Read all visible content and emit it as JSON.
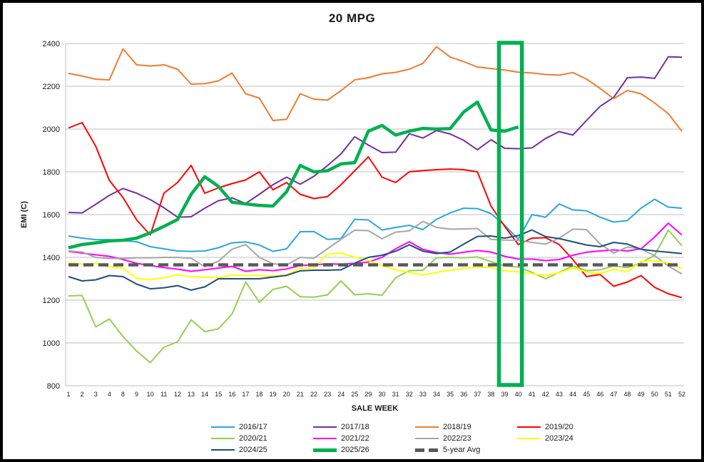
{
  "title": "20 MPG",
  "chart_data": {
    "type": "line",
    "title": "20 MPG",
    "xlabel": "SALE WEEK",
    "ylabel": "EMI (C)",
    "ylim": [
      800,
      2400
    ],
    "y_ticks": [
      800,
      1000,
      1200,
      1400,
      1600,
      1800,
      2000,
      2200,
      2400
    ],
    "grid": true,
    "legend_position": "bottom",
    "categories": [
      1,
      2,
      3,
      4,
      8,
      9,
      10,
      11,
      12,
      13,
      14,
      15,
      16,
      17,
      18,
      19,
      20,
      21,
      22,
      23,
      24,
      25,
      29,
      30,
      31,
      32,
      33,
      34,
      35,
      36,
      37,
      38,
      39,
      40,
      41,
      42,
      43,
      44,
      45,
      46,
      47,
      48,
      49,
      50,
      51,
      52
    ],
    "highlight_box": {
      "from_week": 39,
      "to_week": 40,
      "color": "#00B050"
    },
    "series": [
      {
        "name": "2016/17",
        "color": "#29A8DC",
        "width": 2,
        "values": [
          1500,
          1490,
          1483,
          1483,
          1478,
          1473,
          1450,
          1440,
          1430,
          1428,
          1430,
          1445,
          1468,
          1472,
          1458,
          1428,
          1440,
          1520,
          1521,
          1484,
          1488,
          1578,
          1575,
          1528,
          1540,
          1550,
          1530,
          1578,
          1608,
          1630,
          1628,
          1605,
          1550,
          1485,
          1600,
          1588,
          1650,
          1622,
          1618,
          1588,
          1565,
          1572,
          1630,
          1672,
          1635,
          1630
        ]
      },
      {
        "name": "2017/18",
        "color": "#7030A0",
        "width": 2,
        "values": [
          1610,
          1608,
          1648,
          1690,
          1722,
          1700,
          1670,
          1632,
          1588,
          1590,
          1630,
          1665,
          1678,
          1652,
          1695,
          1740,
          1775,
          1742,
          1779,
          1829,
          1884,
          1964,
          1925,
          1890,
          1892,
          1978,
          1958,
          1993,
          1977,
          1947,
          1903,
          1950,
          1910,
          1908,
          1912,
          1956,
          1988,
          1972,
          2040,
          2106,
          2148,
          2240,
          2243,
          2237,
          2338,
          2336
        ]
      },
      {
        "name": "2018/19",
        "color": "#ED7D31",
        "width": 2,
        "values": [
          2260,
          2248,
          2233,
          2230,
          2375,
          2300,
          2295,
          2300,
          2280,
          2210,
          2212,
          2225,
          2262,
          2165,
          2145,
          2040,
          2046,
          2165,
          2140,
          2135,
          2180,
          2230,
          2240,
          2258,
          2265,
          2280,
          2307,
          2385,
          2337,
          2315,
          2290,
          2283,
          2276,
          2266,
          2262,
          2255,
          2252,
          2264,
          2234,
          2190,
          2142,
          2180,
          2165,
          2122,
          2072,
          1990
        ]
      },
      {
        "name": "2019/20",
        "color": "#FF0000",
        "width": 2,
        "values": [
          2005,
          2030,
          1920,
          1760,
          1680,
          1575,
          1505,
          1700,
          1750,
          1830,
          1700,
          1725,
          1745,
          1762,
          1800,
          1716,
          1750,
          1695,
          1675,
          1684,
          1740,
          1805,
          1870,
          1775,
          1750,
          1800,
          1806,
          1810,
          1813,
          1810,
          1800,
          1640,
          1545,
          1460,
          1490,
          1492,
          1460,
          1390,
          1310,
          1320,
          1265,
          1285,
          1315,
          1260,
          1230,
          1212
        ]
      },
      {
        "name": "2020/21",
        "color": "#92D050",
        "width": 2,
        "values": [
          1220,
          1222,
          1075,
          1112,
          1030,
          962,
          908,
          980,
          1005,
          1108,
          1053,
          1066,
          1135,
          1285,
          1190,
          1250,
          1265,
          1216,
          1214,
          1225,
          1290,
          1225,
          1230,
          1223,
          1305,
          1338,
          1340,
          1398,
          1400,
          1398,
          1402,
          1380,
          1360,
          1355,
          1330,
          1300,
          1330,
          1360,
          1338,
          1342,
          1360,
          1352,
          1375,
          1410,
          1528,
          1455
        ]
      },
      {
        "name": "2021/22",
        "color": "#FF00FF",
        "width": 2,
        "values": [
          1428,
          1420,
          1412,
          1405,
          1390,
          1372,
          1362,
          1352,
          1345,
          1335,
          1342,
          1350,
          1358,
          1335,
          1342,
          1338,
          1346,
          1362,
          1365,
          1370,
          1368,
          1372,
          1378,
          1400,
          1440,
          1473,
          1437,
          1423,
          1415,
          1424,
          1432,
          1425,
          1405,
          1392,
          1392,
          1385,
          1390,
          1410,
          1424,
          1430,
          1435,
          1430,
          1440,
          1495,
          1560,
          1505
        ]
      },
      {
        "name": "2022/23",
        "color": "#A6A6A6",
        "width": 2,
        "values": [
          1430,
          1425,
          1400,
          1395,
          1395,
          1398,
          1398,
          1400,
          1400,
          1396,
          1356,
          1382,
          1438,
          1460,
          1400,
          1370,
          1364,
          1400,
          1396,
          1440,
          1485,
          1527,
          1525,
          1487,
          1518,
          1524,
          1568,
          1540,
          1532,
          1533,
          1535,
          1484,
          1481,
          1480,
          1470,
          1462,
          1490,
          1532,
          1530,
          1463,
          1420,
          1448,
          1440,
          1408,
          1360,
          1322
        ]
      },
      {
        "name": "2023/24",
        "color": "#FFFF00",
        "width": 2,
        "values": [
          1375,
          1368,
          1372,
          1355,
          1350,
          1302,
          1295,
          1305,
          1318,
          1310,
          1307,
          1304,
          1318,
          1315,
          1315,
          1312,
          1318,
          1348,
          1352,
          1415,
          1420,
          1402,
          1385,
          1362,
          1342,
          1330,
          1318,
          1330,
          1340,
          1348,
          1355,
          1352,
          1337,
          1332,
          1324,
          1315,
          1328,
          1350,
          1332,
          1324,
          1344,
          1333,
          1380,
          1385,
          1375,
          1348
        ]
      },
      {
        "name": "2024/25",
        "color": "#1F4E79",
        "width": 2,
        "values": [
          1310,
          1290,
          1295,
          1315,
          1310,
          1275,
          1253,
          1258,
          1268,
          1247,
          1262,
          1300,
          1300,
          1300,
          1300,
          1308,
          1316,
          1337,
          1340,
          1340,
          1342,
          1373,
          1400,
          1410,
          1429,
          1459,
          1429,
          1418,
          1425,
          1462,
          1498,
          1500,
          1490,
          1502,
          1528,
          1497,
          1488,
          1473,
          1458,
          1450,
          1470,
          1462,
          1438,
          1430,
          1424,
          1418
        ]
      },
      {
        "name": "5-year Avg",
        "color": "#595959",
        "width": 4.5,
        "dash": "14 7",
        "constant": 1365
      },
      {
        "name": "2025/26",
        "color": "#00B050",
        "width": 4.5,
        "values": [
          1445,
          1460,
          1468,
          1477,
          1480,
          1490,
          1515,
          1545,
          1577,
          1695,
          1777,
          1732,
          1658,
          1650,
          1643,
          1640,
          1707,
          1830,
          1800,
          1805,
          1837,
          1843,
          1990,
          2017,
          1972,
          1990,
          2003,
          2000,
          2002,
          2080,
          2126,
          1996,
          1990,
          2010
        ]
      }
    ]
  },
  "legend": {
    "rows": [
      [
        "2016/17",
        "2017/18",
        "2018/19",
        "2019/20"
      ],
      [
        "2020/21",
        "2021/22",
        "2022/23",
        "2023/24"
      ],
      [
        "2024/25",
        "2025/26",
        "5-year Avg"
      ]
    ]
  }
}
